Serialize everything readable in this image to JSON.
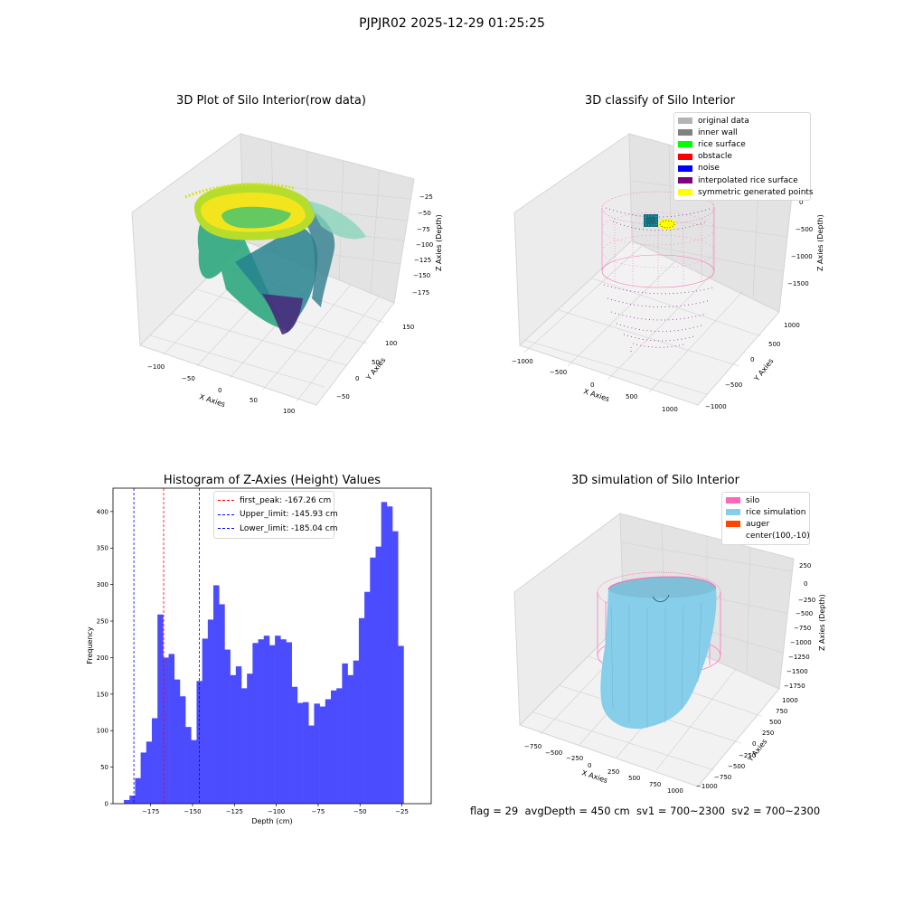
{
  "page": {
    "suptitle": "PJPJR02 2025-12-29 01:25:25"
  },
  "panels": {
    "raw": {
      "title": "3D Plot of Silo Interior(row data)",
      "xlabel": "X Axies",
      "ylabel": "Y Axies",
      "zlabel": "Z Axies (Depth)",
      "xticks": [
        "−100",
        "−50",
        "0",
        "50",
        "100"
      ],
      "yticks": [
        "−50",
        "0",
        "50",
        "100",
        "150"
      ],
      "zticks": [
        "−25",
        "−50",
        "−75",
        "−100",
        "−125",
        "−150",
        "−175"
      ]
    },
    "classify": {
      "title": "3D classify of Silo Interior",
      "xlabel": "X Axies",
      "ylabel": "Y Axies",
      "zlabel": "Z Axies (Depth)",
      "xticks": [
        "−1000",
        "−500",
        "0",
        "500",
        "1000"
      ],
      "yticks": [
        "−1000",
        "−500",
        "0",
        "500",
        "1000"
      ],
      "zticks": [
        "0",
        "−500",
        "−1000",
        "−1500"
      ],
      "legend": [
        {
          "label": "original data",
          "color": "#b4b4b4"
        },
        {
          "label": "inner wall",
          "color": "#808080"
        },
        {
          "label": "rice surface",
          "color": "#00ff00"
        },
        {
          "label": "obstacle",
          "color": "#ff0000"
        },
        {
          "label": "noise",
          "color": "#0000ff"
        },
        {
          "label": "interpolated rice surface",
          "color": "#800080"
        },
        {
          "label": "symmetric generated points",
          "color": "#ffff00"
        }
      ]
    },
    "simulation": {
      "title": "3D simulation of Silo Interior",
      "xlabel": "X Axies",
      "ylabel": "Y Axies",
      "zlabel": "Z Axies (Depth)",
      "xticks": [
        "−750",
        "−500",
        "−250",
        "0",
        "250",
        "500",
        "750",
        "1000"
      ],
      "yticks": [
        "−1000",
        "−750",
        "−500",
        "−250",
        "0",
        "250",
        "500",
        "750",
        "1000"
      ],
      "zticks": [
        "250",
        "0",
        "−250",
        "−500",
        "−750",
        "−1000",
        "−1250",
        "−1500",
        "−1750"
      ],
      "legend": [
        {
          "label": "silo",
          "color": "#ff69b4"
        },
        {
          "label": "rice simulation",
          "color": "#87ceeb"
        },
        {
          "label": "auger",
          "color": "#ff4500"
        },
        {
          "label": "center(100,-10)",
          "color": ""
        }
      ]
    }
  },
  "footer": {
    "text": "flag = 29  avgDepth = 450 cm  sv1 = 700~2300  sv2 = 700~2300"
  },
  "colors": {
    "bar": "#4c4cff",
    "first_peak": "#ff0000",
    "limits": "#0000ff",
    "silo": "#ff69b4",
    "rice": "#87ceeb"
  },
  "chart_data": {
    "type": "bar",
    "title": "Histogram of Z-Axies (Height) Values",
    "xlabel": "Depth (cm)",
    "ylabel": "Frequency",
    "xlim": [
      -197.5,
      -7.5
    ],
    "ylim": [
      0,
      432
    ],
    "xticks": [
      -175,
      -150,
      -125,
      -100,
      -75,
      -50,
      -25
    ],
    "xtick_labels": [
      "−175",
      "−150",
      "−125",
      "−100",
      "−75",
      "−50",
      "−25"
    ],
    "yticks": [
      0,
      50,
      100,
      150,
      200,
      250,
      300,
      350,
      400
    ],
    "bin_width": 3.34,
    "bin_start": -191.0,
    "values": [
      5,
      11,
      35,
      70,
      85,
      117,
      259,
      200,
      205,
      170,
      147,
      105,
      87,
      168,
      226,
      252,
      299,
      273,
      211,
      176,
      188,
      158,
      178,
      220,
      225,
      230,
      217,
      230,
      225,
      221,
      160,
      138,
      139,
      107,
      137,
      133,
      143,
      155,
      158,
      192,
      176,
      196,
      254,
      290,
      337,
      352,
      413,
      407,
      373,
      216
    ],
    "vlines": [
      {
        "name": "first_peak: -167.26 cm",
        "x": -167.26,
        "color": "#ff0000"
      },
      {
        "name": "Upper_limit: -145.93 cm",
        "x": -145.93,
        "color": "#0000ff"
      },
      {
        "name": "Lower_limit: -185.04 cm",
        "x": -185.04,
        "color": "#0000ff"
      }
    ]
  }
}
